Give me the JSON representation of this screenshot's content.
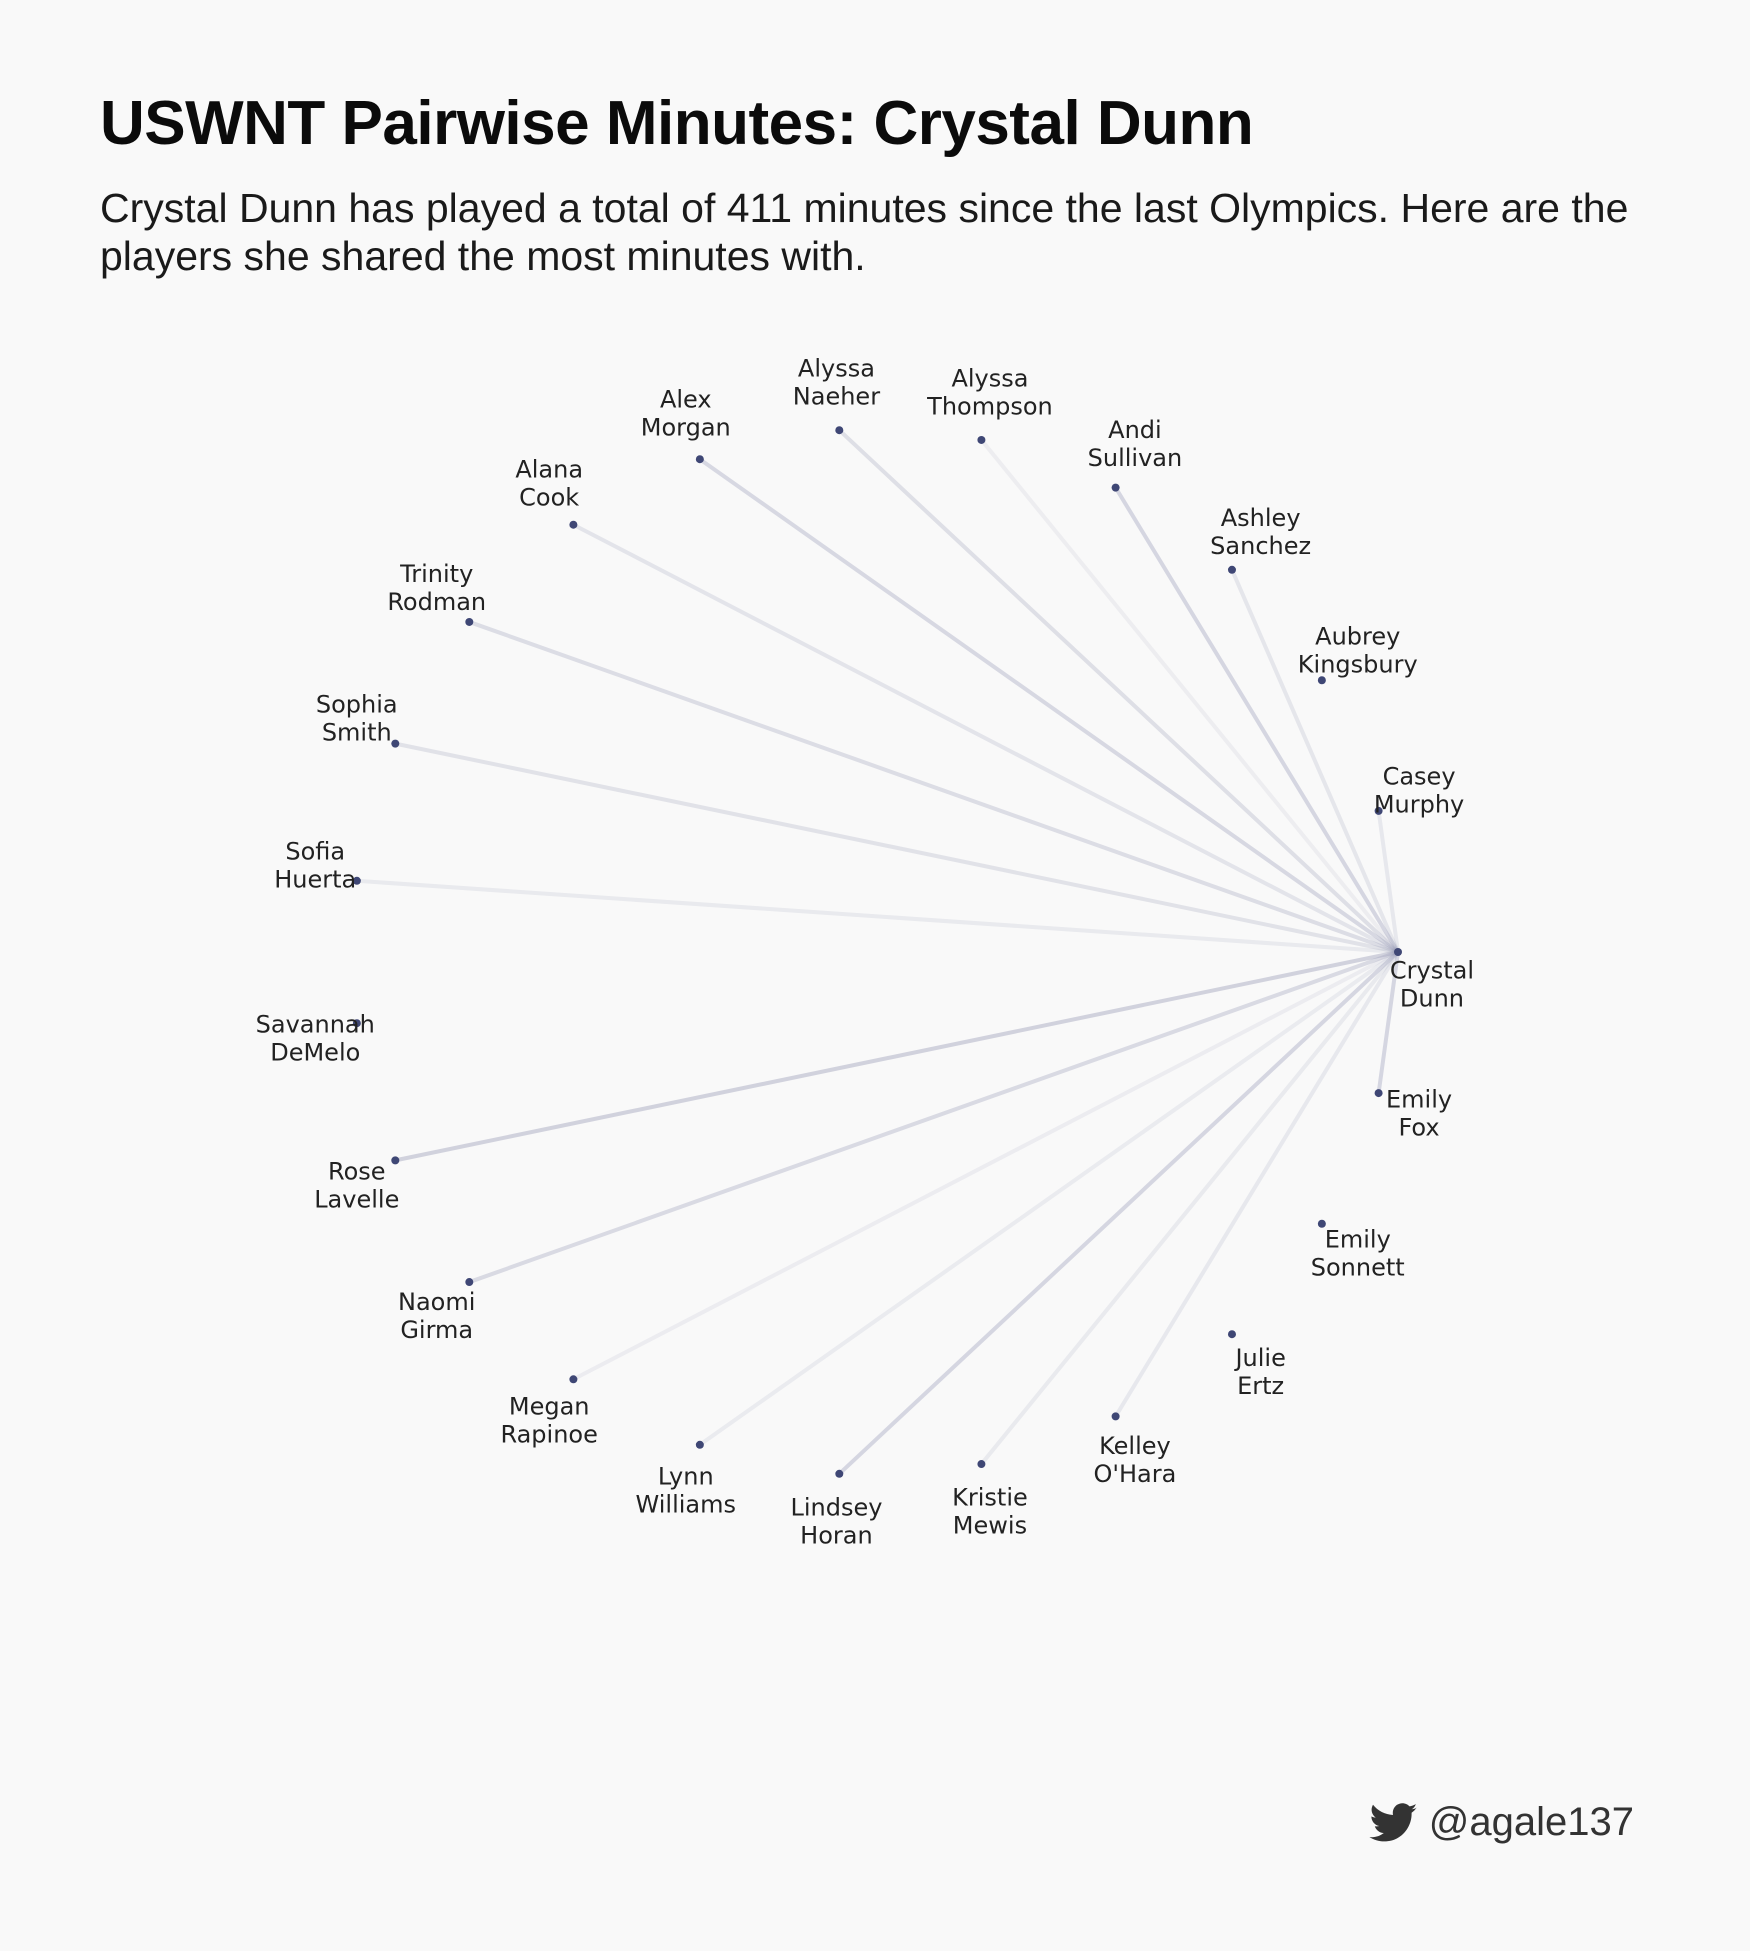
{
  "title": "USWNT Pairwise Minutes: Crystal Dunn",
  "subtitle": "Crystal Dunn has played a total of 411 minutes since the last Olympics. Here are the players she shared the most minutes with.",
  "credit": {
    "handle": "@agale137",
    "icon": "twitter-bird-icon"
  },
  "colors": {
    "node": "#3f4775",
    "edge": "#9a9db8",
    "background": "#f9f9f9"
  },
  "focal": {
    "line1": "Crystal",
    "line2": "Dunn"
  },
  "players": [
    {
      "line1": "Emily",
      "line2": "Fox",
      "shared": 0.7
    },
    {
      "line1": "Emily",
      "line2": "Sonnett",
      "shared": 0
    },
    {
      "line1": "Julie",
      "line2": "Ertz",
      "shared": 0
    },
    {
      "line1": "Kelley",
      "line2": "O'Hara",
      "shared": 0.25
    },
    {
      "line1": "Kristie",
      "line2": "Mewis",
      "shared": 0.2
    },
    {
      "line1": "Lindsey",
      "line2": "Horan",
      "shared": 0.7
    },
    {
      "line1": "Lynn",
      "line2": "Williams",
      "shared": 0.18
    },
    {
      "line1": "Megan",
      "line2": "Rapinoe",
      "shared": 0.12
    },
    {
      "line1": "Naomi",
      "line2": "Girma",
      "shared": 0.6
    },
    {
      "line1": "Rose",
      "line2": "Lavelle",
      "shared": 0.8
    },
    {
      "line1": "Savannah",
      "line2": "DeMelo",
      "shared": 0
    },
    {
      "line1": "Sofia",
      "line2": "Huerta",
      "shared": 0.2
    },
    {
      "line1": "Sophia",
      "line2": "Smith",
      "shared": 0.4
    },
    {
      "line1": "Trinity",
      "line2": "Rodman",
      "shared": 0.55
    },
    {
      "line1": "Alana",
      "line2": "Cook",
      "shared": 0.35
    },
    {
      "line1": "Alex",
      "line2": "Morgan",
      "shared": 0.65
    },
    {
      "line1": "Alyssa",
      "line2": "Naeher",
      "shared": 0.5
    },
    {
      "line1": "Alyssa",
      "line2": "Thompson",
      "shared": 0.1
    },
    {
      "line1": "Andi",
      "line2": "Sullivan",
      "shared": 0.7
    },
    {
      "line1": "Ashley",
      "line2": "Sanchez",
      "shared": 0.3
    },
    {
      "line1": "Aubrey",
      "line2": "Kingsbury",
      "shared": 0
    },
    {
      "line1": "Casey",
      "line2": "Murphy",
      "shared": 0.25
    }
  ]
}
